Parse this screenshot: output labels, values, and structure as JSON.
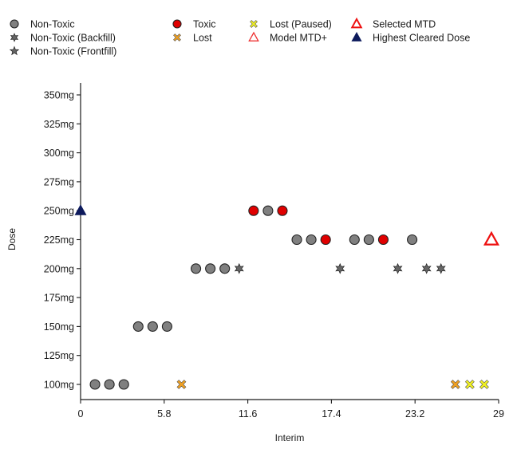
{
  "chart_data": {
    "type": "scatter",
    "xlabel": "Interim",
    "ylabel": "Dose",
    "xlim": [
      0,
      29
    ],
    "x_ticks": [
      "0",
      "5.8",
      "11.6",
      "17.4",
      "23.2",
      "29"
    ],
    "y_categories": [
      "100mg",
      "125mg",
      "150mg",
      "175mg",
      "200mg",
      "225mg",
      "250mg",
      "275mg",
      "300mg",
      "325mg",
      "350mg"
    ],
    "legend": [
      {
        "label": "Non-Toxic",
        "marker": "circle",
        "color": "#808080"
      },
      {
        "label": "Non-Toxic (Backfill)",
        "marker": "star6",
        "color": "#666666"
      },
      {
        "label": "Non-Toxic (Frontfill)",
        "marker": "star5",
        "color": "#666666"
      },
      {
        "label": "Toxic",
        "marker": "circle",
        "color": "#e00000"
      },
      {
        "label": "Lost",
        "marker": "cross",
        "color": "#f0a020"
      },
      {
        "label": "Lost (Paused)",
        "marker": "cross",
        "color": "#f0f020"
      },
      {
        "label": "Model MTD+",
        "marker": "triangle-open",
        "color": "#ee3333"
      },
      {
        "label": "Selected MTD",
        "marker": "triangle-open-bold",
        "color": "#ee1111"
      },
      {
        "label": "Highest Cleared Dose",
        "marker": "triangle-filled",
        "color": "#0d1a5c"
      }
    ],
    "series": [
      {
        "name": "Non-Toxic",
        "points": [
          [
            1,
            "100mg"
          ],
          [
            2,
            "100mg"
          ],
          [
            3,
            "100mg"
          ],
          [
            4,
            "150mg"
          ],
          [
            5,
            "150mg"
          ],
          [
            6,
            "150mg"
          ],
          [
            8,
            "200mg"
          ],
          [
            9,
            "200mg"
          ],
          [
            10,
            "200mg"
          ],
          [
            13,
            "250mg"
          ],
          [
            15,
            "225mg"
          ],
          [
            16,
            "225mg"
          ],
          [
            19,
            "225mg"
          ],
          [
            20,
            "225mg"
          ],
          [
            23,
            "225mg"
          ]
        ]
      },
      {
        "name": "Non-Toxic (Backfill)",
        "points": [
          [
            11,
            "200mg"
          ],
          [
            18,
            "200mg"
          ],
          [
            22,
            "200mg"
          ],
          [
            24,
            "200mg"
          ],
          [
            25,
            "200mg"
          ]
        ]
      },
      {
        "name": "Toxic",
        "points": [
          [
            12,
            "250mg"
          ],
          [
            14,
            "250mg"
          ],
          [
            17,
            "225mg"
          ],
          [
            21,
            "225mg"
          ]
        ]
      },
      {
        "name": "Lost",
        "points": [
          [
            7,
            "100mg"
          ],
          [
            26,
            "100mg"
          ]
        ]
      },
      {
        "name": "Lost (Paused)",
        "points": [
          [
            27,
            "100mg"
          ],
          [
            28,
            "100mg"
          ]
        ]
      },
      {
        "name": "Selected MTD",
        "points": [
          [
            28.5,
            "225mg"
          ]
        ]
      },
      {
        "name": "Highest Cleared Dose",
        "points": [
          [
            0,
            "250mg"
          ]
        ]
      }
    ]
  }
}
